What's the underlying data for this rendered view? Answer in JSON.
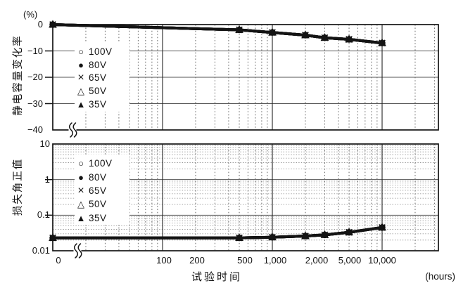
{
  "figure": {
    "background": "#ffffff"
  },
  "colors": {
    "series": "#141414",
    "axis": "#141414",
    "grid_solid": "#555555",
    "grid_dotted_vertical": "#666666",
    "grid_dotted_horizontal": "#999999",
    "text": "#141414",
    "legend_background": "#ffffff"
  },
  "x_axis": {
    "label": "试验时间",
    "unit": "(hours)",
    "tick_labels": [
      "0",
      "100",
      "200",
      "500",
      "1,000",
      "2,000",
      "5,000",
      "10,000"
    ]
  },
  "top_chart": {
    "ylabel": "静电容量变化率",
    "y_unit": "(%)",
    "ytick_labels": [
      "0",
      "−10",
      "−20",
      "−30",
      "−40"
    ]
  },
  "bottom_chart": {
    "ylabel": "损失角正值",
    "ytick_labels": [
      "10",
      "1",
      "0.1",
      "0.01"
    ]
  },
  "legend": {
    "items": [
      {
        "label": "100V",
        "symbol": "open-circle",
        "char": "○"
      },
      {
        "label": "80V",
        "symbol": "filled-circle",
        "char": "●"
      },
      {
        "label": "65V",
        "symbol": "x-mark",
        "char": "×"
      },
      {
        "label": "50V",
        "symbol": "open-triangle",
        "char": "△"
      },
      {
        "label": "35V",
        "symbol": "filled-triangle",
        "char": "▲"
      }
    ]
  },
  "chart_data": [
    {
      "type": "line",
      "ylabel": "静电容量变化率",
      "y_unit": "(%)",
      "y_scale": "linear",
      "ylim": [
        -40,
        0
      ],
      "ytick_values": [
        0,
        -10,
        -20,
        -30,
        -40
      ],
      "xlabel": "试验时间",
      "x_unit": "(hours)",
      "x_scale": "log",
      "x_break_zero": true,
      "xlim": [
        10,
        35000
      ],
      "xtick_values": [
        0,
        100,
        200,
        500,
        1000,
        2000,
        5000,
        10000
      ],
      "grid": true,
      "legend_position": "upper-left-inside",
      "x": [
        0,
        500,
        1000,
        2000,
        3000,
        5000,
        10000
      ],
      "series": [
        {
          "name": "100V",
          "marker": "open-circle",
          "values": [
            0,
            -2,
            -3,
            -4,
            -5,
            -5.6,
            -7
          ]
        },
        {
          "name": "80V",
          "marker": "filled-circle",
          "values": [
            0,
            -2,
            -3,
            -4,
            -5,
            -5.6,
            -7
          ]
        },
        {
          "name": "65V",
          "marker": "x-mark",
          "values": [
            0,
            -2,
            -3,
            -4,
            -5,
            -5.6,
            -7
          ]
        },
        {
          "name": "50V",
          "marker": "open-triangle",
          "values": [
            0,
            -2,
            -3,
            -4,
            -5,
            -5.6,
            -7
          ]
        },
        {
          "name": "35V",
          "marker": "filled-triangle",
          "values": [
            0,
            -2,
            -3,
            -4,
            -5,
            -5.6,
            -7
          ]
        }
      ]
    },
    {
      "type": "line",
      "ylabel": "损失角正值",
      "y_scale": "log",
      "ylim": [
        0.01,
        10
      ],
      "ytick_values": [
        10,
        1,
        0.1,
        0.01
      ],
      "xlabel": "试验时间",
      "x_unit": "(hours)",
      "x_scale": "log",
      "x_break_zero": true,
      "xlim": [
        10,
        35000
      ],
      "xtick_values": [
        0,
        100,
        200,
        500,
        1000,
        2000,
        5000,
        10000
      ],
      "grid": true,
      "legend_position": "upper-left-inside",
      "x": [
        0,
        500,
        1000,
        2000,
        3000,
        5000,
        10000
      ],
      "series": [
        {
          "name": "100V",
          "marker": "open-circle",
          "values": [
            0.023,
            0.023,
            0.024,
            0.026,
            0.028,
            0.033,
            0.045
          ]
        },
        {
          "name": "80V",
          "marker": "filled-circle",
          "values": [
            0.023,
            0.023,
            0.024,
            0.026,
            0.028,
            0.033,
            0.045
          ]
        },
        {
          "name": "65V",
          "marker": "x-mark",
          "values": [
            0.023,
            0.023,
            0.024,
            0.026,
            0.028,
            0.033,
            0.045
          ]
        },
        {
          "name": "50V",
          "marker": "open-triangle",
          "values": [
            0.023,
            0.023,
            0.024,
            0.026,
            0.028,
            0.033,
            0.045
          ]
        },
        {
          "name": "35V",
          "marker": "filled-triangle",
          "values": [
            0.023,
            0.023,
            0.024,
            0.026,
            0.028,
            0.033,
            0.045
          ]
        }
      ]
    }
  ]
}
